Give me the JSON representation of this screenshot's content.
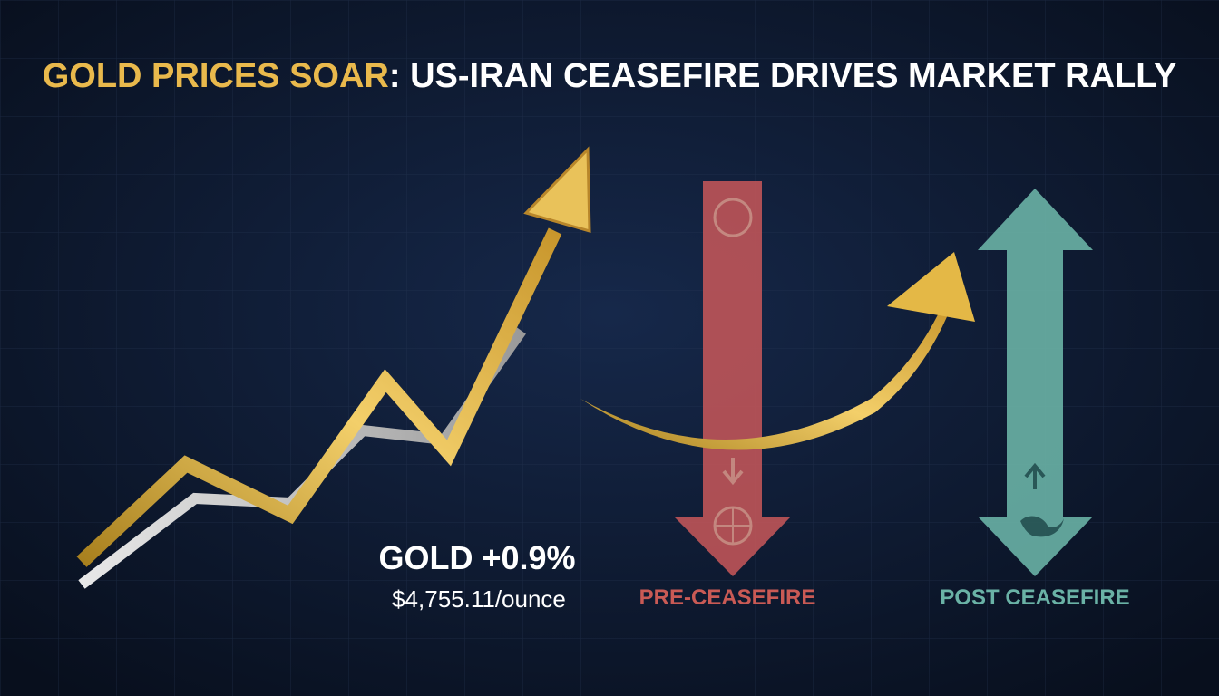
{
  "header": {
    "title_highlight": "GOLD PRICES SOAR",
    "title_rest": ": US-IRAN CEASEFIRE DRIVES MARKET RALLY"
  },
  "stat": {
    "headline": "GOLD +0.9%",
    "price": "$4,755.11/ounce"
  },
  "labels": {
    "pre": "PRE-CEASEFIRE",
    "post": "POST CEASEFIRE"
  }
}
